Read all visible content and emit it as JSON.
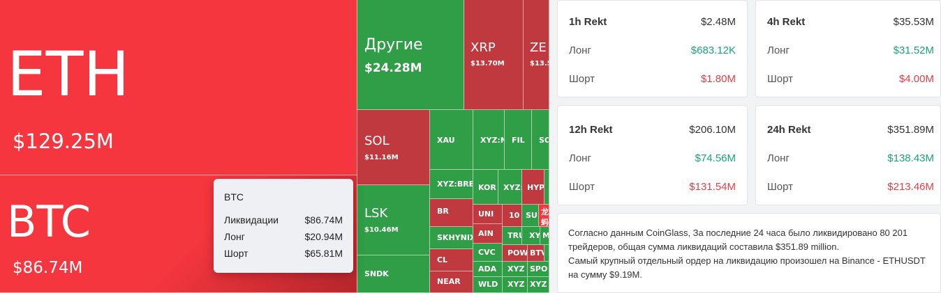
{
  "treemap": {
    "eth": {
      "name": "ETH",
      "value": "$129.25M"
    },
    "btc": {
      "name": "BTC",
      "value": "$86.74M"
    },
    "other": {
      "name": "Другие",
      "value": "$24.28M"
    },
    "xrp": {
      "name": "XRP",
      "value": "$13.70M"
    },
    "zec": {
      "name": "ZE",
      "value": "$13.5"
    },
    "sol": {
      "name": "SOL",
      "value": "$11.16M"
    },
    "lsk": {
      "name": "LSK",
      "value": "$10.46M"
    },
    "small": {
      "xau": "XAU",
      "xyz_n": "XYZ:N",
      "fil": "FIL",
      "so": "SO",
      "xyz_bre": "XYZ:BRE",
      "kor": "KOR",
      "xyz_colon": "XYZ:",
      "hyp": "HYP",
      "br": "BR",
      "uni": "UNI",
      "n10": "10",
      "su": "SU",
      "cjk1": "龙",
      "skhynix": "SKHYNIX",
      "ain": "AIN",
      "tru": "TRU",
      "xy": "XY",
      "cjk2": "蚂",
      "cl": "CL",
      "cvc": "CVC",
      "pow": "POW",
      "btv": "BTV",
      "m": "M",
      "sndk": "SNDK",
      "ada": "ADA",
      "xyz2": "XYZ",
      "spo": "SPO",
      "near": "NEAR",
      "wld": "WLD",
      "xyz3": "XYZ",
      "xyz4": "XYZ"
    }
  },
  "tooltip": {
    "title": "BTC",
    "liq_label": "Ликвидации",
    "liq_value": "$86.74M",
    "long_label": "Лонг",
    "long_value": "$20.94M",
    "short_label": "Шорт",
    "short_value": "$65.81M"
  },
  "rekt": {
    "h1": {
      "title": "1h Rekt",
      "total": "$2.48M",
      "long_label": "Лонг",
      "long": "$683.12K",
      "short_label": "Шорт",
      "short": "$1.80M"
    },
    "h4": {
      "title": "4h Rekt",
      "total": "$35.53M",
      "long_label": "Лонг",
      "long": "$31.52M",
      "short_label": "Шорт",
      "short": "$4.00M"
    },
    "h12": {
      "title": "12h Rekt",
      "total": "$206.10M",
      "long_label": "Лонг",
      "long": "$74.56M",
      "short_label": "Шорт",
      "short": "$131.54M"
    },
    "h24": {
      "title": "24h Rekt",
      "total": "$351.89M",
      "long_label": "Лонг",
      "long": "$138.43M",
      "short_label": "Шорт",
      "short": "$213.46M"
    }
  },
  "summary": {
    "line1": "Согласно данным CoinGlass, За последние 24 часа было ликвидировано 80 201 трейдеров, общая сумма ликвидаций составила $351.89 million.",
    "line2": "Самый крупный отдельный ордер на ликвидацию произошел на Binance - ETHUSDT на сумму $9.19M."
  },
  "colors": {
    "red": "#f5363e",
    "dark_red": "#c0393e",
    "green": "#2f9e47",
    "positive": "#1aa37a",
    "negative": "#e53f49"
  }
}
